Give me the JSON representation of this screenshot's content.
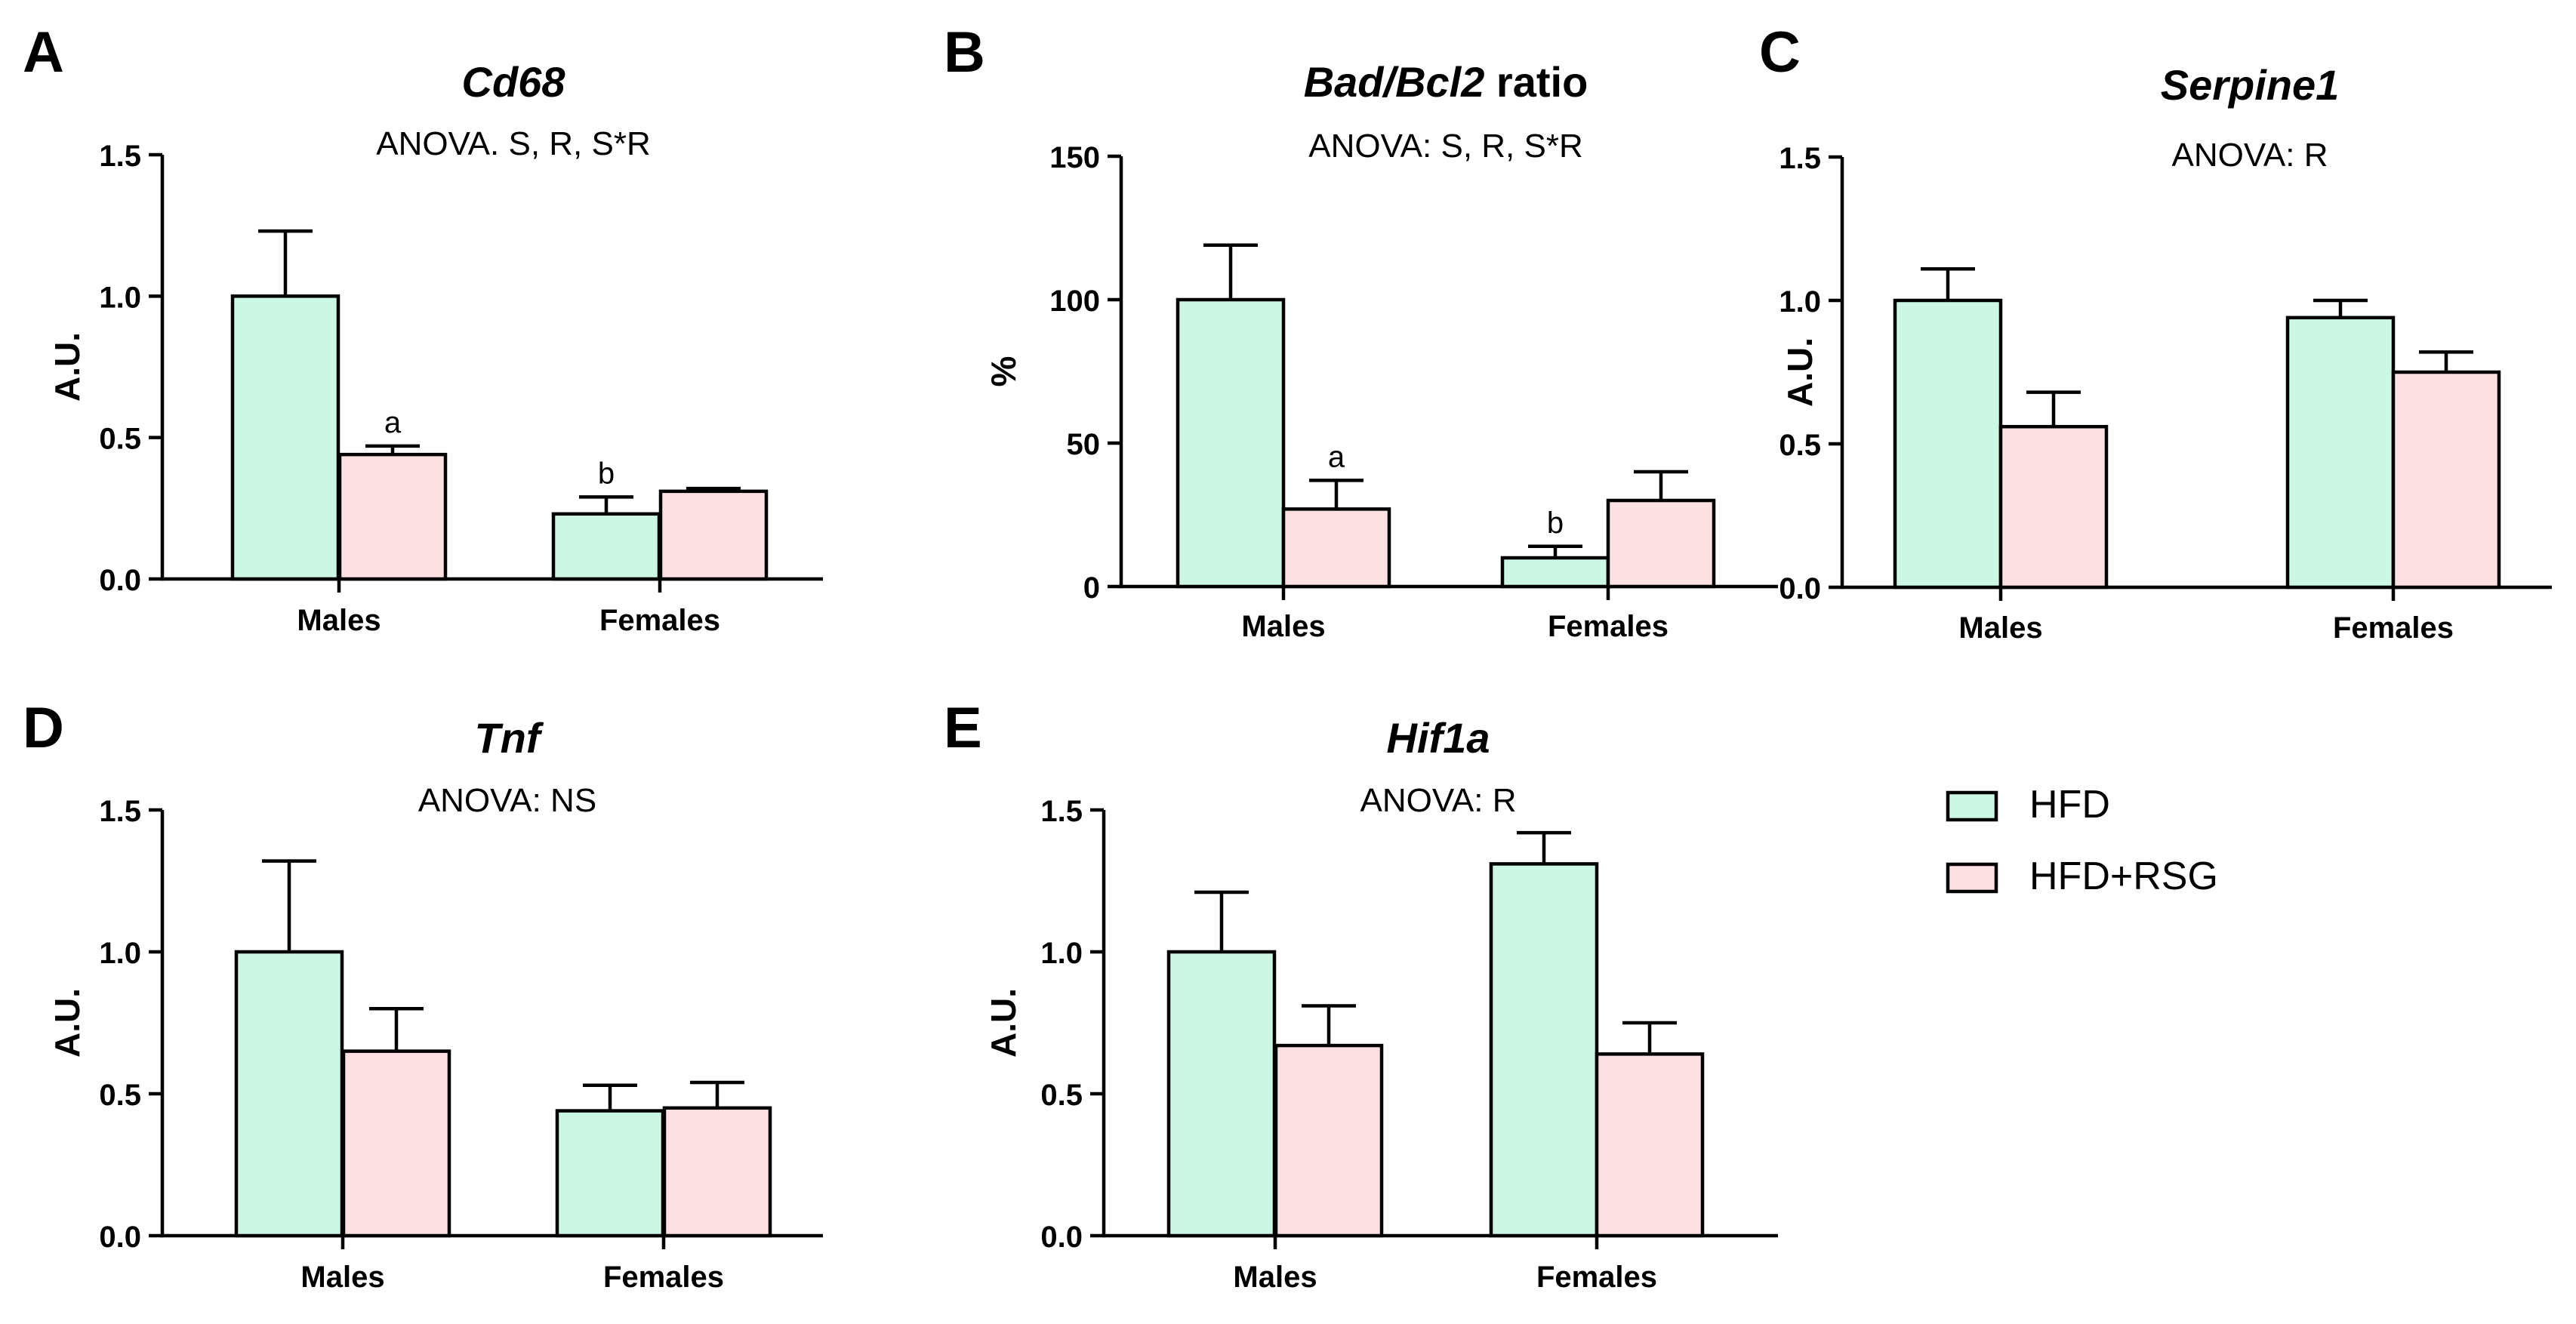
{
  "colors": {
    "hfd": "#ccf7e4",
    "hfd_rsg": "#fde1e2",
    "stroke": "#000000"
  },
  "legend": {
    "items": [
      {
        "label": "HFD",
        "color_key": "hfd"
      },
      {
        "label": "HFD+RSG",
        "color_key": "hfd_rsg"
      }
    ]
  },
  "chart_data": [
    {
      "panel": "A",
      "type": "bar",
      "title_parts": [
        {
          "text": "Cd68",
          "italic": true
        }
      ],
      "subtitle": "ANOVA. S, R, S*R",
      "ylabel": "A.U.",
      "ylim": [
        0,
        1.5
      ],
      "yticks": [
        "0.0",
        "0.5",
        "1.0",
        "1.5"
      ],
      "ytick_values": [
        0,
        0.5,
        1.0,
        1.5
      ],
      "categories": [
        "Males",
        "Females"
      ],
      "series": [
        {
          "name": "HFD",
          "values": [
            1.0,
            0.23
          ],
          "errors": [
            0.23,
            0.06
          ],
          "labels": [
            "",
            "b"
          ]
        },
        {
          "name": "HFD+RSG",
          "values": [
            0.44,
            0.31
          ],
          "errors": [
            0.03,
            0.01
          ],
          "labels": [
            "a",
            ""
          ]
        }
      ]
    },
    {
      "panel": "B",
      "type": "bar",
      "title_parts": [
        {
          "text": "Bad/Bcl2",
          "italic": true
        },
        {
          "text": " ratio",
          "italic": false
        }
      ],
      "subtitle": "ANOVA: S, R, S*R",
      "ylabel": "%",
      "ylim": [
        0,
        150
      ],
      "yticks": [
        "0",
        "50",
        "100",
        "150"
      ],
      "ytick_values": [
        0,
        50,
        100,
        150
      ],
      "categories": [
        "Males",
        "Females"
      ],
      "series": [
        {
          "name": "HFD",
          "values": [
            100,
            10
          ],
          "errors": [
            19,
            4
          ],
          "labels": [
            "",
            "b"
          ]
        },
        {
          "name": "HFD+RSG",
          "values": [
            27,
            30
          ],
          "errors": [
            10,
            10
          ],
          "labels": [
            "a",
            ""
          ]
        }
      ]
    },
    {
      "panel": "C",
      "type": "bar",
      "title_parts": [
        {
          "text": "Serpine1",
          "italic": true
        }
      ],
      "subtitle": "ANOVA: R",
      "ylabel": "A.U.",
      "ylim": [
        0,
        1.5
      ],
      "yticks": [
        "0.0",
        "0.5",
        "1.0",
        "1.5"
      ],
      "ytick_values": [
        0,
        0.5,
        1.0,
        1.5
      ],
      "categories": [
        "Males",
        "Females"
      ],
      "series": [
        {
          "name": "HFD",
          "values": [
            1.0,
            0.94
          ],
          "errors": [
            0.11,
            0.06
          ],
          "labels": [
            "",
            ""
          ]
        },
        {
          "name": "HFD+RSG",
          "values": [
            0.56,
            0.75
          ],
          "errors": [
            0.12,
            0.07
          ],
          "labels": [
            "",
            ""
          ]
        }
      ]
    },
    {
      "panel": "D",
      "type": "bar",
      "title_parts": [
        {
          "text": "Tnf",
          "italic": true
        }
      ],
      "subtitle": "ANOVA: NS",
      "ylabel": "A.U.",
      "ylim": [
        0,
        1.5
      ],
      "yticks": [
        "0.0",
        "0.5",
        "1.0",
        "1.5"
      ],
      "ytick_values": [
        0,
        0.5,
        1.0,
        1.5
      ],
      "categories": [
        "Males",
        "Females"
      ],
      "series": [
        {
          "name": "HFD",
          "values": [
            1.0,
            0.44
          ],
          "errors": [
            0.32,
            0.09
          ],
          "labels": [
            "",
            ""
          ]
        },
        {
          "name": "HFD+RSG",
          "values": [
            0.65,
            0.45
          ],
          "errors": [
            0.15,
            0.09
          ],
          "labels": [
            "",
            ""
          ]
        }
      ]
    },
    {
      "panel": "E",
      "type": "bar",
      "title_parts": [
        {
          "text": "Hif1a",
          "italic": true
        }
      ],
      "subtitle": "ANOVA: R",
      "ylabel": "A.U.",
      "ylim": [
        0,
        1.5
      ],
      "yticks": [
        "0.0",
        "0.5",
        "1.0",
        "1.5"
      ],
      "ytick_values": [
        0,
        0.5,
        1.0,
        1.5
      ],
      "categories": [
        "Males",
        "Females"
      ],
      "series": [
        {
          "name": "HFD",
          "values": [
            1.0,
            1.31
          ],
          "errors": [
            0.21,
            0.11
          ],
          "labels": [
            "",
            ""
          ]
        },
        {
          "name": "HFD+RSG",
          "values": [
            0.67,
            0.64
          ],
          "errors": [
            0.14,
            0.11
          ],
          "labels": [
            "",
            ""
          ]
        }
      ]
    }
  ]
}
